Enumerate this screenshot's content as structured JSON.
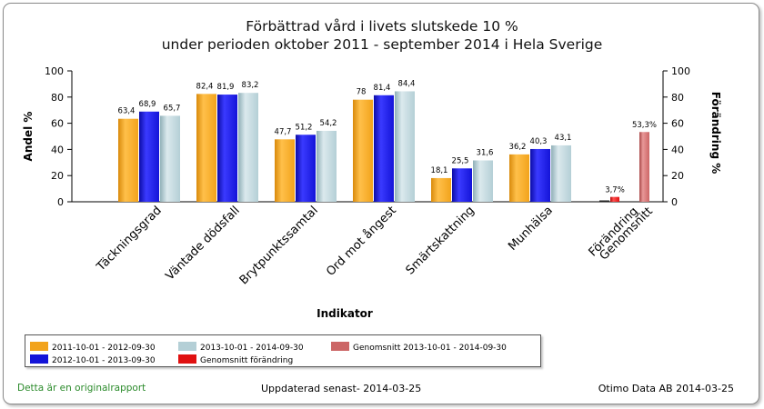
{
  "footer": {
    "left": "Detta är en originalrapport",
    "center": "Uppdaterad senast- 2014-03-25",
    "right": "Otimo Data AB 2014-03-25"
  },
  "colors": {
    "series1": "#f2a31b",
    "series2": "#1414d8",
    "series3": "#b4cfd6",
    "change": "#e01010",
    "average": "#cc6666"
  },
  "chart_data": {
    "type": "bar",
    "title": [
      "Förbättrad vård i livets slutskede 10 %",
      "under perioden oktober 2011 - september 2014 i Hela Sverige"
    ],
    "xlabel": "Indikator",
    "ylabel": "Andel %",
    "ylabel_right": "Förändring %",
    "ylim": [
      0,
      100
    ],
    "ylim_right": [
      0,
      100
    ],
    "yticks": [
      0,
      20,
      40,
      60,
      80,
      100
    ],
    "categories": [
      "Täckningsgrad",
      "Väntade dödsfall",
      "Brytpunktssamtal",
      "Ord mot ångest",
      "Smärtskattning",
      "Munhälsa"
    ],
    "series": [
      {
        "name": "2011-10-01 - 2012-09-30",
        "values": [
          63.4,
          82.4,
          47.7,
          78,
          18.1,
          36.2
        ],
        "labels": [
          "63,4",
          "82,4",
          "47,7",
          "78",
          "18,1",
          "36,2"
        ]
      },
      {
        "name": "2012-10-01 - 2013-09-30",
        "values": [
          68.9,
          81.9,
          51.2,
          81.4,
          25.5,
          40.3
        ],
        "labels": [
          "68,9",
          "81,9",
          "51,2",
          "81,4",
          "25,5",
          "40,3"
        ]
      },
      {
        "name": "2013-10-01 - 2014-09-30",
        "values": [
          65.7,
          83.2,
          54.2,
          84.4,
          31.6,
          43.1
        ],
        "labels": [
          "65,7",
          "83,2",
          "54,2",
          "84,4",
          "31,6",
          "43,1"
        ]
      }
    ],
    "extra_category": {
      "label_lines": [
        "Förändring",
        "Genomsnitt"
      ],
      "bars": [
        {
          "name": "Genomsnitt förändring",
          "value": 3.7,
          "label": "3,7%",
          "axis": "right"
        },
        {
          "name": "Genomsnitt 2013-10-01 - 2014-09-30",
          "value": 53.3,
          "label": "53,3%",
          "axis": "right"
        }
      ]
    },
    "legend": {
      "placement": "bottom",
      "entries": [
        {
          "name": "2011-10-01 - 2012-09-30",
          "color_key": "series1"
        },
        {
          "name": "2013-10-01 - 2014-09-30",
          "color_key": "series3"
        },
        {
          "name": "Genomsnitt 2013-10-01 - 2014-09-30",
          "color_key": "average"
        },
        {
          "name": "2012-10-01 - 2013-09-30",
          "color_key": "series2"
        },
        {
          "name": "Genomsnitt förändring",
          "color_key": "change"
        }
      ]
    },
    "grid": false
  }
}
